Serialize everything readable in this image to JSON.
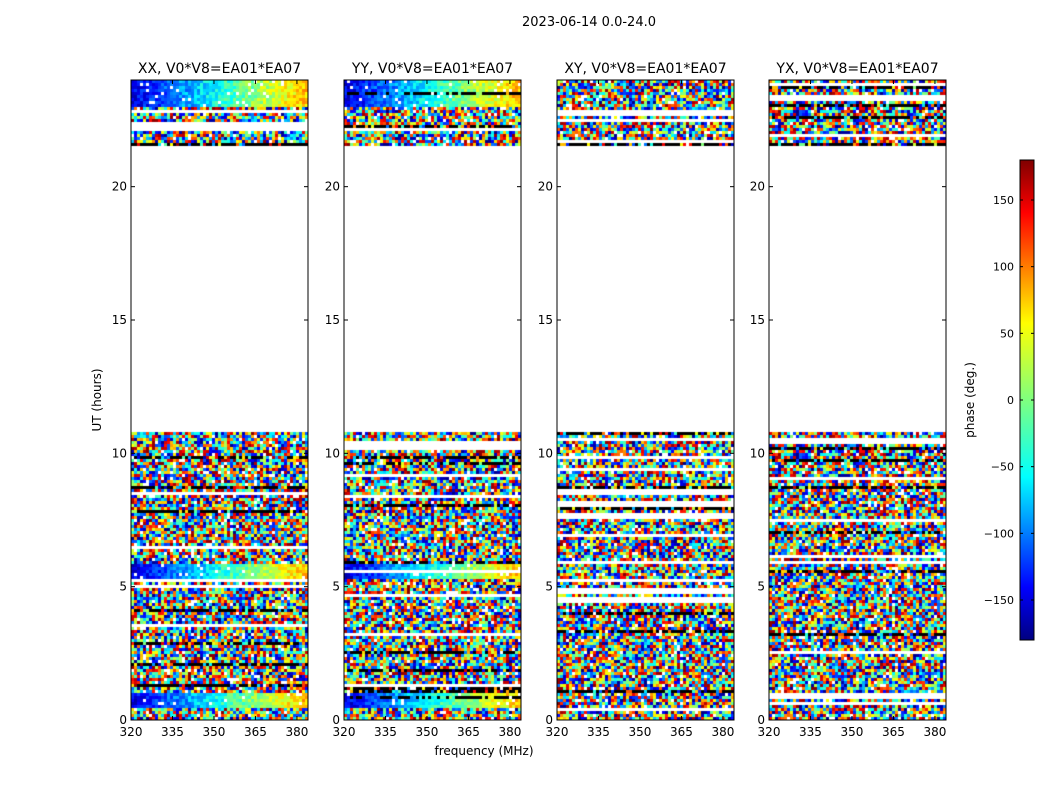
{
  "chart_data": {
    "type": "heatmap",
    "suptitle": "2023-06-14 0.0-24.0",
    "xlabel": "frequency (MHz)",
    "ylabel": "UT (hours)",
    "xlim": [
      320,
      384
    ],
    "ylim": [
      0,
      24
    ],
    "xticks": [
      320,
      335,
      350,
      365,
      380
    ],
    "yticks": [
      0,
      5,
      10,
      15,
      20
    ],
    "panels": [
      {
        "title": "XX, V0*V8=EA01*EA07",
        "pol": "XX"
      },
      {
        "title": "YY, V0*V8=EA01*EA07",
        "pol": "YY"
      },
      {
        "title": "XY, V0*V8=EA01*EA07",
        "pol": "XY"
      },
      {
        "title": "YX, V0*V8=EA01*EA07",
        "pol": "YX"
      }
    ],
    "data_time_ranges_hours": [
      [
        0.0,
        10.8
      ],
      [
        21.6,
        24.0
      ]
    ],
    "colorbar": {
      "label": "phase (deg.)",
      "range": [
        -180,
        180
      ],
      "ticks": [
        -150,
        -100,
        -50,
        0,
        50,
        100,
        150
      ],
      "tick_labels": [
        "−150",
        "−100",
        "−50",
        "0",
        "50",
        "100",
        "150"
      ],
      "colormap": "jet"
    }
  }
}
